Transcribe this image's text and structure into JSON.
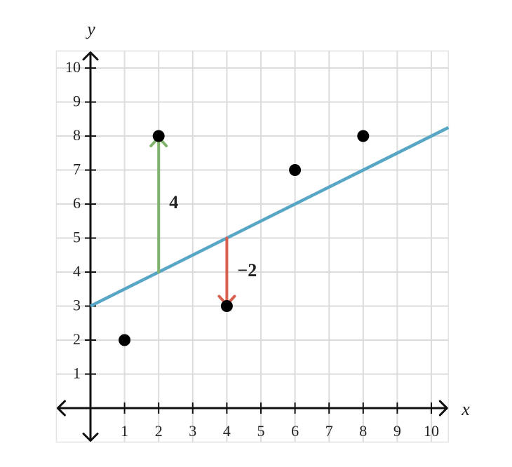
{
  "chart_data": {
    "type": "scatter",
    "x_label": "x",
    "y_label": "y",
    "x": [
      1,
      2,
      4,
      6,
      8
    ],
    "y": [
      2,
      8,
      3,
      7,
      8
    ],
    "color": "#000000",
    "lines": [
      {
        "x": [
          0,
          10.5
        ],
        "y": [
          3,
          8.25
        ],
        "color": "#58a6c6"
      }
    ],
    "annotations": [
      {
        "x": 2,
        "y_from": 4,
        "y_to": 8,
        "text": "4",
        "color": "#80b26e",
        "text_color": "#5f8a55"
      },
      {
        "x": 4,
        "y_from": 5,
        "y_to": 3,
        "text": "−2",
        "color": "#d8604e",
        "text_color": "#c0503e"
      }
    ],
    "xlim": [
      -1,
      10.5
    ],
    "ylim": [
      -1,
      10.5
    ],
    "xticks": [
      1,
      2,
      3,
      4,
      5,
      6,
      7,
      8,
      9,
      10
    ],
    "yticks": [
      1,
      2,
      3,
      4,
      5,
      6,
      7,
      8,
      9,
      10
    ],
    "grid": true
  }
}
